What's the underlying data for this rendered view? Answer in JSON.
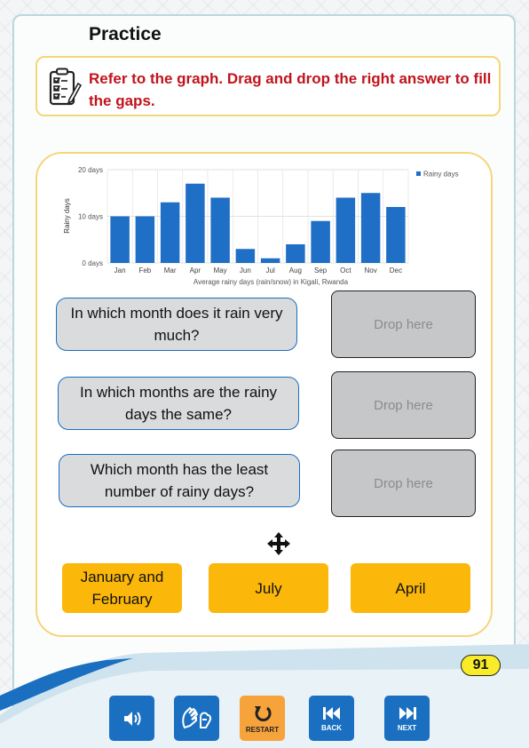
{
  "page": {
    "title": "Practice",
    "instruction": "Refer to the graph. Drag and drop the right answer to fill the gaps.",
    "page_number": "91"
  },
  "chart_data": {
    "type": "bar",
    "categories": [
      "Jan",
      "Feb",
      "Mar",
      "Apr",
      "May",
      "Jun",
      "Jul",
      "Aug",
      "Sep",
      "Oct",
      "Nov",
      "Dec"
    ],
    "series": [
      {
        "name": "Rainy days",
        "values": [
          10,
          10,
          13,
          17,
          14,
          3,
          1,
          4,
          9,
          14,
          15,
          12
        ]
      }
    ],
    "title": "",
    "xlabel": "Average rainy days (rain/snow) in Kigali, Rwanda",
    "ylabel": "Rainy days",
    "ylim": [
      0,
      20
    ],
    "yticks": [
      "0 days",
      "10 days",
      "20 days"
    ],
    "grid": true,
    "legend_position": "top-right",
    "bar_color": "#1f6fc6"
  },
  "questions": [
    {
      "text": "In which month does it rain very much?",
      "drop_label": "Drop here"
    },
    {
      "text": "In which months are the rainy days the same?",
      "drop_label": "Drop here"
    },
    {
      "text": "Which month has the least number of rainy days?",
      "drop_label": "Drop here"
    }
  ],
  "answers": [
    {
      "label": "January and February"
    },
    {
      "label": "July"
    },
    {
      "label": "April"
    }
  ],
  "nav": {
    "audio_icon": "speaker-icon",
    "sign_icon": "sign-language-icon",
    "restart_label": "RESTART",
    "back_label": "BACK",
    "next_label": "NEXT"
  },
  "colors": {
    "accent_blue": "#1a6fc1",
    "answer_yellow": "#fbb70a",
    "instruction_red": "#c0141c",
    "restart_orange": "#f6a33c"
  }
}
